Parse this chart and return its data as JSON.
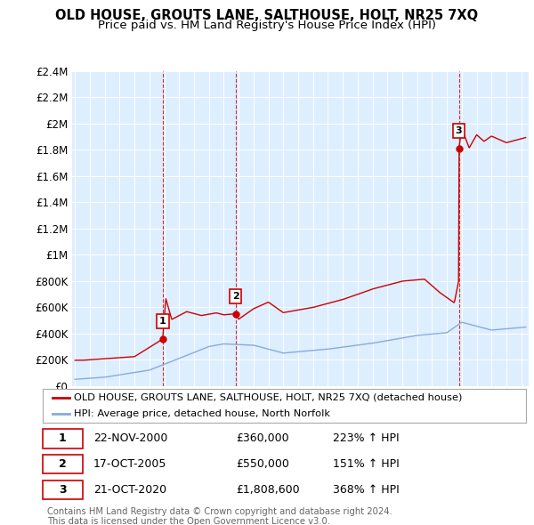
{
  "title": "OLD HOUSE, GROUTS LANE, SALTHOUSE, HOLT, NR25 7XQ",
  "subtitle": "Price paid vs. HM Land Registry's House Price Index (HPI)",
  "ylabel_ticks": [
    "£0",
    "£200K",
    "£400K",
    "£600K",
    "£800K",
    "£1M",
    "£1.2M",
    "£1.4M",
    "£1.6M",
    "£1.8M",
    "£2M",
    "£2.2M",
    "£2.4M"
  ],
  "ytick_values": [
    0,
    200000,
    400000,
    600000,
    800000,
    1000000,
    1200000,
    1400000,
    1600000,
    1800000,
    2000000,
    2200000,
    2400000
  ],
  "ylim": [
    0,
    2400000
  ],
  "xlim_start": 1994.8,
  "xlim_end": 2025.5,
  "sale_dates": [
    2000.896,
    2005.792,
    2020.806
  ],
  "sale_prices": [
    360000,
    550000,
    1808600
  ],
  "sale_labels": [
    "1",
    "2",
    "3"
  ],
  "dashed_line_color": "#cc0000",
  "hpi_line_color": "#88aadd",
  "price_line_color": "#cc0000",
  "plot_bg_color": "#ddeeff",
  "legend_label_price": "OLD HOUSE, GROUTS LANE, SALTHOUSE, HOLT, NR25 7XQ (detached house)",
  "legend_label_hpi": "HPI: Average price, detached house, North Norfolk",
  "table_rows": [
    [
      "1",
      "22-NOV-2000",
      "£360,000",
      "223% ↑ HPI"
    ],
    [
      "2",
      "17-OCT-2005",
      "£550,000",
      "151% ↑ HPI"
    ],
    [
      "3",
      "21-OCT-2020",
      "£1,808,600",
      "368% ↑ HPI"
    ]
  ],
  "footnote": "Contains HM Land Registry data © Crown copyright and database right 2024.\nThis data is licensed under the Open Government Licence v3.0."
}
